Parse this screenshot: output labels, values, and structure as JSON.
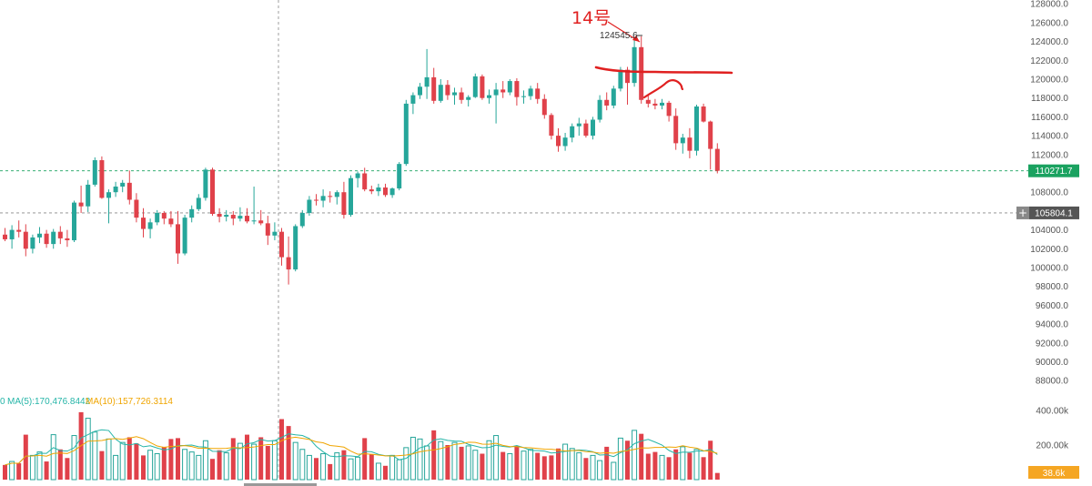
{
  "chart_data": {
    "type": "candlestick",
    "price_axis": {
      "ticks": [
        "128000.0",
        "126000.0",
        "124000.0",
        "122000.0",
        "120000.0",
        "118000.0",
        "116000.0",
        "114000.0",
        "112000.0",
        "110000.0",
        "108000.0",
        "104000.0",
        "102000.0",
        "100000.0",
        "98000.0",
        "96000.0",
        "94000.0",
        "92000.0",
        "90000.0",
        "88000.0"
      ],
      "tick_values": [
        128000,
        126000,
        124000,
        122000,
        120000,
        118000,
        116000,
        114000,
        112000,
        110000,
        108000,
        104000,
        102000,
        100000,
        98000,
        96000,
        94000,
        92000,
        90000,
        88000
      ],
      "range": [
        86000,
        129000
      ]
    },
    "volume_axis": {
      "ticks": [
        "400.00k",
        "200.00k"
      ],
      "tick_values": [
        400000,
        200000
      ],
      "range": [
        0,
        480000
      ]
    },
    "current_price": {
      "value": 110271.7,
      "label": "110271.7",
      "color": "#1aa260"
    },
    "cursor_price": {
      "value": 105804.1,
      "label": "105804.1",
      "plus": "+"
    },
    "current_volume": {
      "value": 38600,
      "label": "38.6k",
      "color": "#f5a623"
    },
    "high_marker": {
      "value": 124545.6,
      "label": "124545.6"
    },
    "annotation": {
      "text": "14号",
      "color": "#e02020",
      "resistance_level": 120500
    },
    "ma_legend": {
      "prefix": "0",
      "ma5": {
        "label": "MA(5):170,476.8442",
        "color": "#26b5a8"
      },
      "ma10": {
        "label": "MA(10):157,726.3114",
        "color": "#f0a500"
      }
    },
    "colors": {
      "up": "#26a69a",
      "down": "#e0414a"
    },
    "candles": [
      [
        103500,
        104200,
        102800,
        103000
      ],
      [
        103000,
        104500,
        102000,
        104000
      ],
      [
        104000,
        105000,
        103200,
        103800
      ],
      [
        103800,
        104600,
        101200,
        102000
      ],
      [
        102000,
        103500,
        101500,
        103200
      ],
      [
        103200,
        104300,
        102600,
        103600
      ],
      [
        103600,
        104000,
        102100,
        102500
      ],
      [
        102500,
        104100,
        102000,
        103800
      ],
      [
        103800,
        104400,
        102500,
        103100
      ],
      [
        103100,
        104000,
        102200,
        102900
      ],
      [
        102900,
        107100,
        102700,
        106900
      ],
      [
        106900,
        108700,
        105800,
        106500
      ],
      [
        106500,
        109300,
        105900,
        108800
      ],
      [
        108800,
        111700,
        108600,
        111400
      ],
      [
        111400,
        111800,
        107300,
        107400
      ],
      [
        107400,
        108300,
        104700,
        108000
      ],
      [
        108000,
        109100,
        107500,
        108600
      ],
      [
        108600,
        109300,
        108000,
        109000
      ],
      [
        109000,
        110300,
        106700,
        107200
      ],
      [
        107200,
        107900,
        104800,
        105300
      ],
      [
        105300,
        106300,
        103200,
        104100
      ],
      [
        104100,
        105200,
        103100,
        104800
      ],
      [
        104800,
        106100,
        104500,
        105800
      ],
      [
        105800,
        106000,
        104600,
        105200
      ],
      [
        105200,
        106000,
        104300,
        104600
      ],
      [
        104600,
        106000,
        100400,
        101500
      ],
      [
        101500,
        105600,
        101300,
        105300
      ],
      [
        105300,
        106600,
        104800,
        106200
      ],
      [
        106200,
        107800,
        106000,
        107400
      ],
      [
        107400,
        110600,
        107100,
        110400
      ],
      [
        110400,
        110600,
        105500,
        105700
      ],
      [
        105700,
        106300,
        104800,
        105400
      ],
      [
        105400,
        106100,
        104900,
        105600
      ],
      [
        105600,
        106000,
        104500,
        105200
      ],
      [
        105200,
        106400,
        104900,
        105500
      ],
      [
        105500,
        106300,
        104700,
        104900
      ],
      [
        104900,
        108600,
        104600,
        105000
      ],
      [
        105000,
        106100,
        104500,
        104700
      ],
      [
        104700,
        105500,
        102400,
        103400
      ],
      [
        103400,
        104800,
        102900,
        103800
      ],
      [
        103800,
        104200,
        100200,
        101100
      ],
      [
        101100,
        103300,
        98200,
        99800
      ],
      [
        99800,
        104600,
        99600,
        104400
      ],
      [
        104400,
        106100,
        104200,
        105800
      ],
      [
        105800,
        107600,
        105500,
        107200
      ],
      [
        107200,
        107800,
        106600,
        107100
      ],
      [
        107100,
        108300,
        106400,
        107600
      ],
      [
        107600,
        108100,
        106900,
        107500
      ],
      [
        107500,
        108200,
        106700,
        108000
      ],
      [
        108000,
        109100,
        105200,
        105600
      ],
      [
        105600,
        109800,
        105400,
        109500
      ],
      [
        109500,
        110200,
        108500,
        110000
      ],
      [
        110000,
        110600,
        108100,
        108300
      ],
      [
        108300,
        108700,
        107800,
        108100
      ],
      [
        108100,
        108900,
        107600,
        108500
      ],
      [
        108500,
        108900,
        107500,
        107700
      ],
      [
        107700,
        108500,
        107400,
        108400
      ],
      [
        108400,
        111200,
        108200,
        111000
      ],
      [
        111000,
        117800,
        110800,
        117400
      ],
      [
        117400,
        118600,
        116300,
        118300
      ],
      [
        118300,
        119600,
        117900,
        119200
      ],
      [
        119200,
        123200,
        117900,
        120200
      ],
      [
        120200,
        121200,
        117400,
        117700
      ],
      [
        117700,
        120000,
        117500,
        119400
      ],
      [
        119400,
        119900,
        117800,
        118300
      ],
      [
        118300,
        119100,
        117300,
        118600
      ],
      [
        118600,
        119100,
        117400,
        117800
      ],
      [
        117800,
        118300,
        117100,
        118100
      ],
      [
        118100,
        120600,
        118000,
        120300
      ],
      [
        120300,
        120500,
        117800,
        118000
      ],
      [
        118000,
        118900,
        117400,
        118300
      ],
      [
        118300,
        119600,
        115300,
        118900
      ],
      [
        118900,
        119800,
        118000,
        118600
      ],
      [
        118600,
        120000,
        118300,
        119800
      ],
      [
        119800,
        120100,
        117200,
        118100
      ],
      [
        118100,
        118800,
        117400,
        118200
      ],
      [
        118200,
        119300,
        117800,
        119000
      ],
      [
        119000,
        119600,
        117400,
        117900
      ],
      [
        117900,
        118400,
        115800,
        116200
      ],
      [
        116200,
        116400,
        113600,
        114000
      ],
      [
        114000,
        114800,
        112300,
        112900
      ],
      [
        112900,
        114300,
        112400,
        113800
      ],
      [
        113800,
        115300,
        113300,
        115000
      ],
      [
        115000,
        115900,
        114000,
        115300
      ],
      [
        115300,
        115700,
        113800,
        114000
      ],
      [
        114000,
        116000,
        113600,
        115700
      ],
      [
        115700,
        118300,
        115400,
        117800
      ],
      [
        117800,
        118600,
        116700,
        117200
      ],
      [
        117200,
        119300,
        116900,
        119000
      ],
      [
        119000,
        121300,
        118700,
        121000
      ],
      [
        121000,
        121300,
        117300,
        119600
      ],
      [
        119600,
        124500,
        119200,
        123400
      ],
      [
        123400,
        124545.6,
        117400,
        117800
      ],
      [
        117800,
        118400,
        117000,
        117400
      ],
      [
        117400,
        117900,
        116800,
        117200
      ],
      [
        117200,
        117900,
        116800,
        117500
      ],
      [
        117500,
        117700,
        115500,
        116100
      ],
      [
        116100,
        116900,
        112500,
        113200
      ],
      [
        113200,
        114200,
        112100,
        113800
      ],
      [
        113800,
        114800,
        111600,
        112400
      ],
      [
        112400,
        117300,
        111900,
        117100
      ],
      [
        117100,
        117400,
        115400,
        115500
      ],
      [
        115500,
        115600,
        110400,
        112600
      ],
      [
        112600,
        113200,
        110000,
        110271.7
      ]
    ],
    "volume": [
      85000,
      105000,
      95000,
      260000,
      140000,
      160000,
      105000,
      260000,
      175000,
      125000,
      255000,
      390000,
      355000,
      275000,
      165000,
      235000,
      140000,
      215000,
      245000,
      210000,
      140000,
      170000,
      150000,
      190000,
      235000,
      240000,
      175000,
      160000,
      140000,
      225000,
      120000,
      170000,
      155000,
      240000,
      210000,
      260000,
      205000,
      245000,
      195000,
      225000,
      350000,
      310000,
      215000,
      175000,
      140000,
      125000,
      150000,
      90000,
      155000,
      170000,
      120000,
      130000,
      240000,
      145000,
      95000,
      80000,
      140000,
      115000,
      185000,
      245000,
      235000,
      195000,
      285000,
      220000,
      200000,
      215000,
      190000,
      195000,
      170000,
      150000,
      225000,
      255000,
      160000,
      150000,
      195000,
      165000,
      175000,
      155000,
      135000,
      140000,
      180000,
      205000,
      180000,
      155000,
      125000,
      140000,
      110000,
      190000,
      100000,
      240000,
      225000,
      285000,
      265000,
      150000,
      160000,
      140000,
      130000,
      175000,
      190000,
      155000,
      175000,
      130000,
      225000,
      38600
    ]
  }
}
